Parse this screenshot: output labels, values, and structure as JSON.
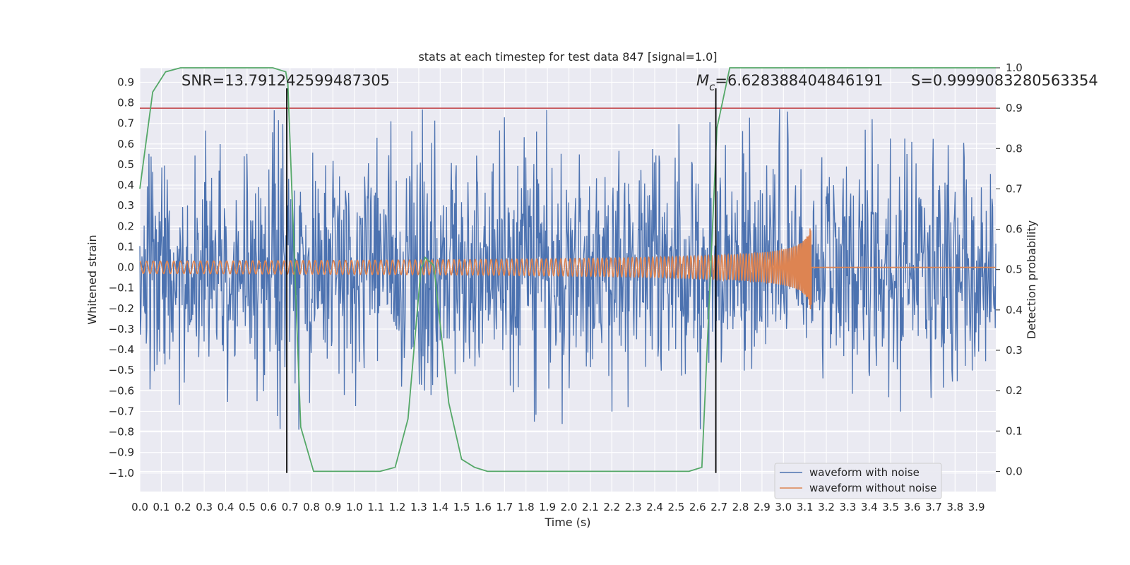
{
  "chart_data": {
    "type": "line",
    "title": "stats at each timestep for test data 847 [signal=1.0]",
    "xlabel": "Time (s)",
    "ylabel": "Whitened strain",
    "y2label": "Detection probability",
    "xlim": [
      0.0,
      3.99
    ],
    "ylim": [
      -1.09,
      0.97
    ],
    "y2lim": [
      -0.05,
      1.0
    ],
    "xticks": [
      "0.0",
      "0.1",
      "0.2",
      "0.3",
      "0.4",
      "0.5",
      "0.6",
      "0.7",
      "0.8",
      "0.9",
      "1.0",
      "1.1",
      "1.2",
      "1.3",
      "1.4",
      "1.5",
      "1.6",
      "1.7",
      "1.8",
      "1.9",
      "2.0",
      "2.1",
      "2.2",
      "2.3",
      "2.4",
      "2.5",
      "2.6",
      "2.7",
      "2.8",
      "2.9",
      "3.0",
      "3.1",
      "3.2",
      "3.3",
      "3.4",
      "3.5",
      "3.6",
      "3.7",
      "3.8",
      "3.9"
    ],
    "yticks": [
      "0.9",
      "0.8",
      "0.7",
      "0.6",
      "0.5",
      "0.4",
      "0.3",
      "0.2",
      "0.1",
      "0.0",
      "-0.1",
      "-0.2",
      "-0.3",
      "-0.4",
      "-0.5",
      "-0.6",
      "-0.7",
      "-0.8",
      "-0.9",
      "-1.0"
    ],
    "y2ticks": [
      "1.0",
      "0.9",
      "0.8",
      "0.7",
      "0.6",
      "0.5",
      "0.4",
      "0.3",
      "0.2",
      "0.1",
      "0.0"
    ],
    "threshold": 0.9,
    "vlines": [
      0.685,
      2.685
    ],
    "annotations": {
      "snr": "SNR=13.791242599487305",
      "mc_symbol": "M",
      "mc_sub": "c",
      "mc_value": "=6.628388404846191",
      "s": "S=0.9999083280563354"
    },
    "series": [
      {
        "name": "waveform with noise",
        "color": "#4c72b0",
        "description": "whitened strain, noisy, approx std 0.28 with spikes to 0.86 and -1.0"
      },
      {
        "name": "waveform without noise",
        "color": "#dd8452",
        "description": "chirp: amplitude ~0.03 rising to ~0.37 at merger 3.13 s, then zero"
      },
      {
        "name": "detection probability",
        "color": "#55a868",
        "axis": "right",
        "x": [
          0.0,
          0.06,
          0.12,
          0.19,
          0.25,
          0.31,
          0.37,
          0.44,
          0.5,
          0.56,
          0.62,
          0.68,
          0.69,
          0.75,
          0.81,
          0.87,
          0.94,
          1.0,
          1.06,
          1.12,
          1.19,
          1.25,
          1.31,
          1.33,
          1.37,
          1.44,
          1.5,
          1.56,
          1.62,
          1.69,
          1.75,
          1.81,
          1.87,
          1.94,
          2.0,
          2.06,
          2.12,
          2.19,
          2.25,
          2.31,
          2.37,
          2.44,
          2.5,
          2.56,
          2.62,
          2.69,
          2.75,
          2.81,
          2.87,
          2.94,
          3.0,
          3.06,
          3.12,
          3.19,
          3.25,
          3.31,
          3.37,
          3.44,
          3.5,
          3.56,
          3.62,
          3.69,
          3.75,
          3.81,
          3.87,
          3.94,
          3.99
        ],
        "values": [
          0.7,
          0.94,
          0.99,
          1.0,
          1.0,
          1.0,
          1.0,
          1.0,
          1.0,
          1.0,
          1.0,
          0.99,
          0.96,
          0.11,
          0.0,
          0.0,
          0.0,
          0.0,
          0.0,
          0.0,
          0.01,
          0.13,
          0.5,
          0.53,
          0.51,
          0.17,
          0.03,
          0.01,
          0.0,
          0.0,
          0.0,
          0.0,
          0.0,
          0.0,
          0.0,
          0.0,
          0.0,
          0.0,
          0.0,
          0.0,
          0.0,
          0.0,
          0.0,
          0.0,
          0.01,
          0.85,
          1.0,
          1.0,
          1.0,
          1.0,
          1.0,
          1.0,
          1.0,
          1.0,
          1.0,
          1.0,
          1.0,
          1.0,
          1.0,
          1.0,
          1.0,
          1.0,
          1.0,
          1.0,
          1.0,
          1.0,
          1.0
        ]
      },
      {
        "name": "threshold",
        "color": "#c44e52",
        "axis": "right",
        "values": [
          0.9
        ]
      }
    ],
    "legend": {
      "placement": "lower-right",
      "entries": [
        "waveform with noise",
        "waveform without noise"
      ]
    }
  }
}
